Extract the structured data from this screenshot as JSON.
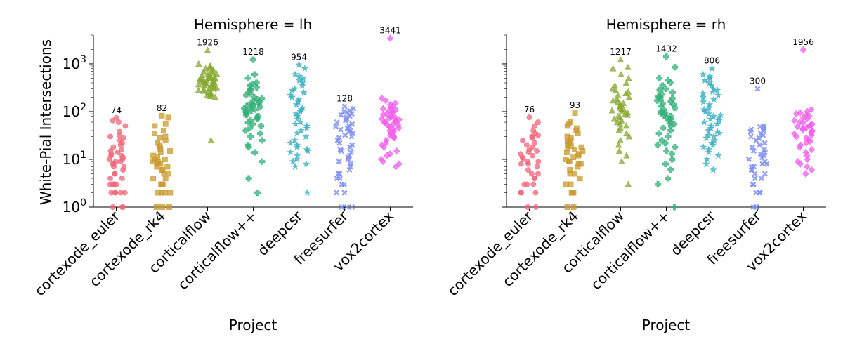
{
  "chart_data": {
    "type": "scatter",
    "ylabel": "White-Pial Intersections",
    "yscale": "log",
    "ylim": [
      1,
      4000
    ],
    "yticks": [
      "10^0",
      "10^1",
      "10^2",
      "10^3"
    ],
    "categories": [
      "cortexode_euler",
      "cortexode_rk4",
      "corticalflow",
      "corticalflow++",
      "deepcsr",
      "freesurfer",
      "vox2cortex"
    ],
    "colors": [
      "#f0657a",
      "#c99a2e",
      "#86a82f",
      "#33b07a",
      "#36adbf",
      "#7d8ef0",
      "#f25cec"
    ],
    "markers": [
      "circle",
      "square",
      "triangle",
      "plus",
      "star",
      "x",
      "diamond"
    ],
    "panels": [
      {
        "title": "Hemisphere = lh",
        "xlabel": "Project",
        "max_labels": [
          "74",
          "82",
          "1926",
          "1218",
          "954",
          "128",
          "3441"
        ],
        "series": [
          {
            "name": "cortexode_euler",
            "values": [
              74,
              65,
              60,
              50,
              38,
              32,
              30,
              28,
              25,
              22,
              20,
              18,
              16,
              15,
              14,
              13,
              12,
              12,
              11,
              10,
              10,
              9,
              9,
              8,
              8,
              7,
              7,
              6,
              5,
              5,
              4,
              4,
              3,
              3,
              3,
              3,
              2,
              2,
              2,
              2,
              2,
              1,
              1,
              1
            ]
          },
          {
            "name": "cortexode_rk4",
            "values": [
              82,
              75,
              55,
              50,
              40,
              35,
              30,
              28,
              25,
              22,
              20,
              18,
              16,
              15,
              14,
              12,
              11,
              10,
              10,
              9,
              9,
              8,
              8,
              7,
              7,
              6,
              6,
              5,
              5,
              4,
              4,
              3,
              3,
              3,
              2,
              2,
              2,
              2,
              1,
              1,
              1
            ]
          },
          {
            "name": "corticalflow",
            "values": [
              1926,
              1000,
              900,
              850,
              800,
              750,
              700,
              680,
              650,
              620,
              600,
              580,
              560,
              540,
              520,
              510,
              500,
              490,
              480,
              470,
              460,
              450,
              440,
              430,
              420,
              410,
              400,
              390,
              380,
              370,
              360,
              350,
              340,
              330,
              320,
              310,
              300,
              290,
              280,
              270,
              260,
              250,
              240,
              230,
              220,
              210,
              200,
              25
            ]
          },
          {
            "name": "corticalflow++",
            "values": [
              1218,
              600,
              500,
              400,
              380,
              350,
              320,
              300,
              280,
              260,
              240,
              220,
              200,
              190,
              180,
              170,
              160,
              150,
              145,
              140,
              135,
              130,
              125,
              120,
              115,
              110,
              105,
              100,
              95,
              90,
              85,
              80,
              75,
              70,
              65,
              60,
              55,
              50,
              45,
              40,
              35,
              30,
              25,
              20,
              18,
              14,
              9,
              4,
              2
            ]
          },
          {
            "name": "deepcsr",
            "values": [
              954,
              800,
              600,
              550,
              500,
              450,
              400,
              350,
              300,
              280,
              250,
              220,
              200,
              180,
              160,
              140,
              120,
              110,
              100,
              90,
              80,
              70,
              60,
              55,
              50,
              45,
              40,
              35,
              30,
              25,
              22,
              20,
              18,
              16,
              15,
              14,
              12,
              10,
              9,
              8,
              7,
              2
            ]
          },
          {
            "name": "freesurfer",
            "values": [
              128,
              115,
              105,
              100,
              95,
              90,
              85,
              80,
              75,
              70,
              65,
              60,
              55,
              50,
              48,
              45,
              42,
              40,
              38,
              35,
              32,
              30,
              28,
              25,
              22,
              20,
              18,
              16,
              15,
              14,
              12,
              11,
              10,
              9,
              8,
              7,
              6,
              5,
              5,
              4,
              4,
              3,
              3,
              2,
              2,
              1,
              1,
              1
            ]
          },
          {
            "name": "vox2cortex",
            "values": [
              3441,
              190,
              170,
              150,
              140,
              130,
              120,
              115,
              110,
              105,
              100,
              95,
              90,
              85,
              80,
              78,
              75,
              72,
              70,
              68,
              65,
              62,
              60,
              58,
              55,
              52,
              50,
              48,
              45,
              42,
              40,
              38,
              35,
              32,
              30,
              28,
              25,
              22,
              20,
              18,
              15,
              13,
              12,
              10,
              9,
              8,
              7
            ]
          }
        ]
      },
      {
        "title": "Hemisphere = rh",
        "xlabel": "Project",
        "max_labels": [
          "76",
          "93",
          "1217",
          "1432",
          "806",
          "300",
          "1956"
        ],
        "series": [
          {
            "name": "cortexode_euler",
            "values": [
              76,
              60,
              50,
              40,
              35,
              32,
              30,
              28,
              25,
              22,
              20,
              18,
              16,
              15,
              14,
              13,
              12,
              11,
              10,
              9,
              9,
              8,
              8,
              7,
              6,
              5,
              5,
              4,
              4,
              3,
              3,
              3,
              2,
              2,
              2,
              1,
              1
            ]
          },
          {
            "name": "cortexode_rk4",
            "values": [
              93,
              60,
              55,
              50,
              45,
              40,
              35,
              30,
              28,
              25,
              24,
              22,
              20,
              19,
              18,
              17,
              16,
              15,
              14,
              13,
              12,
              11,
              10,
              9,
              9,
              8,
              8,
              7,
              6,
              5,
              5,
              4,
              3,
              3,
              2,
              2,
              2,
              1,
              1
            ]
          },
          {
            "name": "corticalflow",
            "values": [
              1217,
              850,
              800,
              600,
              500,
              400,
              350,
              300,
              280,
              260,
              240,
              220,
              200,
              180,
              170,
              160,
              150,
              140,
              130,
              120,
              115,
              110,
              105,
              100,
              95,
              90,
              85,
              80,
              75,
              70,
              65,
              60,
              55,
              50,
              45,
              40,
              35,
              30,
              25,
              20,
              15,
              12,
              9,
              3
            ]
          },
          {
            "name": "corticalflow++",
            "values": [
              1432,
              850,
              500,
              450,
              400,
              350,
              300,
              280,
              250,
              230,
              210,
              200,
              190,
              180,
              170,
              160,
              150,
              140,
              130,
              120,
              110,
              100,
              95,
              90,
              85,
              80,
              75,
              70,
              65,
              60,
              55,
              50,
              45,
              40,
              35,
              30,
              25,
              22,
              20,
              18,
              15,
              13,
              10,
              8,
              6,
              4,
              3,
              1
            ]
          },
          {
            "name": "deepcsr",
            "values": [
              806,
              600,
              550,
              500,
              450,
              400,
              350,
              300,
              280,
              260,
              240,
              220,
              200,
              180,
              160,
              140,
              120,
              110,
              100,
              90,
              85,
              80,
              75,
              70,
              65,
              60,
              55,
              50,
              45,
              40,
              38,
              35,
              32,
              30,
              28,
              25,
              22,
              20,
              18,
              16,
              14,
              12,
              10,
              8,
              6
            ]
          },
          {
            "name": "freesurfer",
            "values": [
              300,
              50,
              48,
              45,
              42,
              40,
              38,
              35,
              32,
              30,
              28,
              25,
              22,
              20,
              18,
              16,
              15,
              14,
              13,
              12,
              11,
              10,
              9,
              8,
              8,
              7,
              7,
              6,
              6,
              5,
              5,
              4,
              4,
              3,
              3,
              2,
              2,
              2,
              1,
              1,
              1
            ]
          },
          {
            "name": "vox2cortex",
            "values": [
              1956,
              110,
              100,
              95,
              90,
              85,
              80,
              75,
              70,
              65,
              60,
              58,
              55,
              52,
              50,
              48,
              46,
              44,
              42,
              40,
              38,
              36,
              34,
              32,
              30,
              28,
              26,
              24,
              22,
              20,
              18,
              16,
              14,
              12,
              10,
              9,
              8,
              7,
              6,
              5
            ]
          }
        ]
      }
    ]
  }
}
